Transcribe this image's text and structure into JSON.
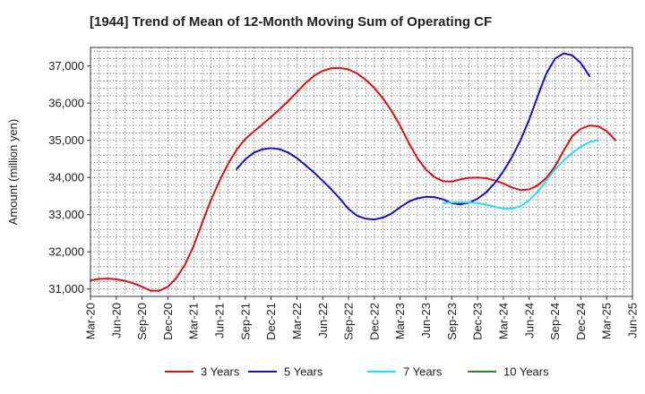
{
  "chart_data": {
    "type": "line",
    "title": "[1944]  Trend of Mean of 12-Month Moving Sum of Operating CF",
    "xlabel": "",
    "ylabel": "Amount (million yen)",
    "ylim": [
      30800,
      37500
    ],
    "yticks": [
      31000,
      32000,
      33000,
      34000,
      35000,
      36000,
      37000
    ],
    "ytick_labels": [
      "31,000",
      "32,000",
      "33,000",
      "34,000",
      "35,000",
      "36,000",
      "37,000"
    ],
    "xlim": [
      "2020-03",
      "2025-06"
    ],
    "xtick_labels": [
      "Mar-20",
      "Jun-20",
      "Sep-20",
      "Dec-20",
      "Mar-21",
      "Jun-21",
      "Sep-21",
      "Dec-21",
      "Mar-22",
      "Jun-22",
      "Sep-22",
      "Dec-22",
      "Mar-23",
      "Jun-23",
      "Sep-23",
      "Dec-23",
      "Mar-24",
      "Jun-24",
      "Sep-24",
      "Dec-24",
      "Mar-25",
      "Jun-25"
    ],
    "grid": true,
    "legend_position": "bottom",
    "series": [
      {
        "name": "3 Years",
        "color": "#dd1111",
        "start": "2020-03",
        "values": [
          31230,
          31270,
          31280,
          31260,
          31220,
          31150,
          31060,
          30950,
          30950,
          31060,
          31300,
          31660,
          32160,
          32790,
          33390,
          33910,
          34370,
          34750,
          35040,
          35240,
          35430,
          35630,
          35840,
          36060,
          36300,
          36540,
          36740,
          36870,
          36940,
          36950,
          36910,
          36800,
          36630,
          36410,
          36130,
          35790,
          35390,
          34930,
          34520,
          34210,
          34010,
          33900,
          33890,
          33950,
          33990,
          34000,
          33980,
          33920,
          33840,
          33730,
          33660,
          33680,
          33790,
          33990,
          34300,
          34720,
          35110,
          35310,
          35400,
          35380,
          35250,
          35010
        ]
      },
      {
        "name": "5 Years",
        "color": "#1111cc",
        "start": "2021-08",
        "values": [
          34230,
          34490,
          34670,
          34760,
          34790,
          34760,
          34670,
          34520,
          34330,
          34130,
          33910,
          33680,
          33430,
          33150,
          32970,
          32890,
          32870,
          32920,
          33030,
          33200,
          33350,
          33440,
          33480,
          33470,
          33410,
          33310,
          33280,
          33320,
          33430,
          33600,
          33850,
          34170,
          34550,
          35010,
          35560,
          36200,
          36800,
          37200,
          37340,
          37290,
          37080,
          36730
        ]
      },
      {
        "name": "7 Years",
        "color": "#22e0f0",
        "start": "2023-08",
        "values": [
          33310,
          33330,
          33330,
          33330,
          33310,
          33270,
          33210,
          33160,
          33160,
          33230,
          33390,
          33620,
          33920,
          34220,
          34460,
          34660,
          34830,
          34950,
          35010
        ]
      },
      {
        "name": "10 Years",
        "color": "#228822",
        "start": "2025-03",
        "values": []
      }
    ]
  }
}
